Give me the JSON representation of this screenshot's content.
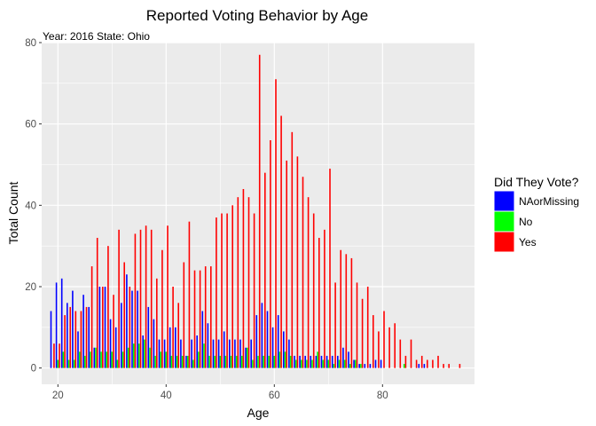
{
  "chart_data": {
    "type": "bar",
    "title": "Reported Voting Behavior by Age",
    "subtitle": "Year: 2016 State: Ohio",
    "xlabel": "Age",
    "ylabel": "Total Count",
    "xlim": [
      17,
      97
    ],
    "ylim": [
      -4,
      80
    ],
    "x_ticks": [
      20,
      40,
      60,
      80
    ],
    "y_ticks": [
      0,
      20,
      40,
      60,
      80
    ],
    "grid": true,
    "legend": {
      "title": "Did They Vote?",
      "placement": "right"
    },
    "series": [
      {
        "name": "NAorMissing",
        "color": "#0000FF",
        "offset": -0.28,
        "points": [
          [
            19,
            14
          ],
          [
            20,
            21
          ],
          [
            21,
            22
          ],
          [
            22,
            16
          ],
          [
            23,
            19
          ],
          [
            24,
            9
          ],
          [
            25,
            18
          ],
          [
            26,
            15
          ],
          [
            27,
            5
          ],
          [
            28,
            20
          ],
          [
            29,
            20
          ],
          [
            30,
            12
          ],
          [
            31,
            10
          ],
          [
            32,
            16
          ],
          [
            33,
            23
          ],
          [
            34,
            19
          ],
          [
            35,
            19
          ],
          [
            36,
            8
          ],
          [
            37,
            15
          ],
          [
            38,
            12
          ],
          [
            39,
            7
          ],
          [
            40,
            7
          ],
          [
            41,
            10
          ],
          [
            42,
            10
          ],
          [
            43,
            7
          ],
          [
            44,
            3
          ],
          [
            45,
            7
          ],
          [
            46,
            8
          ],
          [
            47,
            14
          ],
          [
            48,
            11
          ],
          [
            49,
            7
          ],
          [
            50,
            7
          ],
          [
            51,
            9
          ],
          [
            52,
            7
          ],
          [
            53,
            7
          ],
          [
            54,
            7
          ],
          [
            55,
            5
          ],
          [
            56,
            7
          ],
          [
            57,
            13
          ],
          [
            58,
            16
          ],
          [
            59,
            14
          ],
          [
            60,
            10
          ],
          [
            61,
            13
          ],
          [
            62,
            9
          ],
          [
            63,
            7
          ],
          [
            64,
            3
          ],
          [
            65,
            3
          ],
          [
            66,
            3
          ],
          [
            67,
            3
          ],
          [
            68,
            3
          ],
          [
            69,
            3
          ],
          [
            70,
            3
          ],
          [
            71,
            3
          ],
          [
            72,
            3
          ],
          [
            73,
            5
          ],
          [
            74,
            4
          ],
          [
            75,
            2
          ],
          [
            76,
            1
          ],
          [
            77,
            1
          ],
          [
            78,
            1
          ],
          [
            79,
            2
          ],
          [
            80,
            2
          ],
          [
            87,
            1
          ],
          [
            88,
            1
          ]
        ]
      },
      {
        "name": "No",
        "color": "#00FF00",
        "offset": 0.0,
        "points": [
          [
            20,
            2
          ],
          [
            21,
            4
          ],
          [
            22,
            2
          ],
          [
            23,
            2
          ],
          [
            24,
            4
          ],
          [
            25,
            3
          ],
          [
            26,
            4
          ],
          [
            27,
            5
          ],
          [
            28,
            4
          ],
          [
            29,
            4
          ],
          [
            30,
            4
          ],
          [
            31,
            2
          ],
          [
            32,
            4
          ],
          [
            33,
            5
          ],
          [
            34,
            6
          ],
          [
            35,
            6
          ],
          [
            36,
            7
          ],
          [
            37,
            5
          ],
          [
            38,
            3
          ],
          [
            39,
            4
          ],
          [
            40,
            4
          ],
          [
            41,
            3
          ],
          [
            42,
            3
          ],
          [
            43,
            3
          ],
          [
            44,
            3
          ],
          [
            45,
            2
          ],
          [
            46,
            4
          ],
          [
            47,
            6
          ],
          [
            48,
            3
          ],
          [
            49,
            3
          ],
          [
            50,
            3
          ],
          [
            51,
            3
          ],
          [
            52,
            3
          ],
          [
            53,
            3
          ],
          [
            54,
            3
          ],
          [
            55,
            5
          ],
          [
            56,
            2
          ],
          [
            57,
            3
          ],
          [
            58,
            3
          ],
          [
            59,
            3
          ],
          [
            60,
            3
          ],
          [
            61,
            4
          ],
          [
            62,
            4
          ],
          [
            63,
            3
          ],
          [
            64,
            2
          ],
          [
            65,
            2
          ],
          [
            66,
            2
          ],
          [
            67,
            2
          ],
          [
            68,
            4
          ],
          [
            69,
            2
          ],
          [
            70,
            2
          ],
          [
            71,
            1
          ],
          [
            72,
            2
          ],
          [
            73,
            2
          ],
          [
            74,
            1
          ],
          [
            75,
            2
          ],
          [
            76,
            1
          ],
          [
            84,
            1
          ]
        ]
      },
      {
        "name": "Yes",
        "color": "#FF0000",
        "offset": 0.28,
        "points": [
          [
            19,
            6
          ],
          [
            20,
            6
          ],
          [
            21,
            13
          ],
          [
            22,
            15
          ],
          [
            23,
            14
          ],
          [
            24,
            14
          ],
          [
            25,
            15
          ],
          [
            26,
            25
          ],
          [
            27,
            32
          ],
          [
            28,
            20
          ],
          [
            29,
            30
          ],
          [
            30,
            18
          ],
          [
            31,
            34
          ],
          [
            32,
            26
          ],
          [
            33,
            20
          ],
          [
            34,
            33
          ],
          [
            35,
            34
          ],
          [
            36,
            35
          ],
          [
            37,
            34
          ],
          [
            38,
            22
          ],
          [
            39,
            29
          ],
          [
            40,
            35
          ],
          [
            41,
            20
          ],
          [
            42,
            16
          ],
          [
            43,
            26
          ],
          [
            44,
            36
          ],
          [
            45,
            24
          ],
          [
            46,
            24
          ],
          [
            47,
            25
          ],
          [
            48,
            25
          ],
          [
            49,
            37
          ],
          [
            50,
            38
          ],
          [
            51,
            38
          ],
          [
            52,
            40
          ],
          [
            53,
            42
          ],
          [
            54,
            44
          ],
          [
            55,
            42
          ],
          [
            56,
            38
          ],
          [
            57,
            77
          ],
          [
            58,
            48
          ],
          [
            59,
            56
          ],
          [
            60,
            71
          ],
          [
            61,
            62
          ],
          [
            62,
            51
          ],
          [
            63,
            58
          ],
          [
            64,
            52
          ],
          [
            65,
            47
          ],
          [
            66,
            42
          ],
          [
            67,
            38
          ],
          [
            68,
            32
          ],
          [
            69,
            34
          ],
          [
            70,
            49
          ],
          [
            71,
            21
          ],
          [
            72,
            29
          ],
          [
            73,
            28
          ],
          [
            74,
            27
          ],
          [
            75,
            21
          ],
          [
            76,
            17
          ],
          [
            77,
            20
          ],
          [
            78,
            13
          ],
          [
            79,
            9
          ],
          [
            80,
            14
          ],
          [
            81,
            10
          ],
          [
            82,
            11
          ],
          [
            83,
            7
          ],
          [
            84,
            3
          ],
          [
            85,
            7
          ],
          [
            86,
            2
          ],
          [
            87,
            3
          ],
          [
            88,
            2
          ],
          [
            89,
            2
          ],
          [
            90,
            3
          ],
          [
            91,
            1
          ],
          [
            92,
            1
          ],
          [
            94,
            1
          ]
        ]
      }
    ]
  }
}
